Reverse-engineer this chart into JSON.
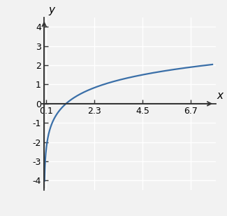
{
  "title": "",
  "xlabel": "x",
  "ylabel": "y",
  "xlim": [
    -0.15,
    7.85
  ],
  "ylim": [
    -4.5,
    4.5
  ],
  "x_ticks": [
    0.1,
    2.3,
    4.5,
    6.7
  ],
  "x_tick_labels": [
    "0.1",
    "2.3",
    "4.5",
    "6.7"
  ],
  "y_ticks": [
    -4,
    -3,
    -2,
    -1,
    0,
    1,
    2,
    3,
    4
  ],
  "y_tick_labels": [
    "-4",
    "-3",
    "-2",
    "-1",
    "0",
    "1",
    "2",
    "3",
    "4"
  ],
  "line_color": "#3a6fa8",
  "line_width": 1.6,
  "x_start": 0.018,
  "x_end": 7.7,
  "background_color": "#f2f2f2",
  "grid_color": "#ffffff",
  "spine_color": "#333333",
  "tick_fontsize": 9,
  "label_fontsize": 11
}
